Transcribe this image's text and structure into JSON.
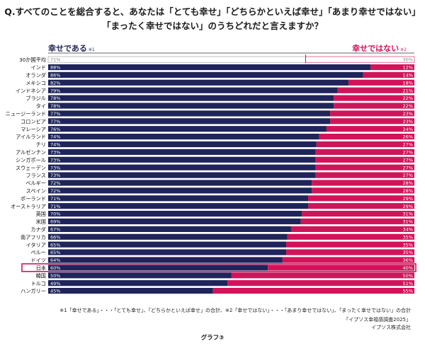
{
  "title_line1": "Q.すべてのことを総合すると、あなたは「とても幸せ」「どちらかといえば幸せ」「あまり幸せではない」",
  "title_line2": "「まったく幸せではない」のうちどれだと言えますか？",
  "legend": {
    "happy_label": "幸せである",
    "happy_note": "※1",
    "unhappy_label": "幸せではない",
    "unhappy_note": "※2",
    "happy_color": "#1f255a",
    "unhappy_color": "#d1145a",
    "average_color": "#ffffff",
    "highlight_color": "#d1145a"
  },
  "footnote": "※1「幸せである」・・・「とても幸せ」、「どちらかといえば幸せ」の合計、※2「幸せではない」・・・「あまり幸せではない」、「まったく幸せではない」の合計",
  "source_survey": "「イプソス幸福感調査2025」",
  "source_company": "イプソス株式会社",
  "graph_label": "グラフ③",
  "chart_data": {
    "type": "bar",
    "orientation": "horizontal-stacked-100",
    "title": "",
    "xlabel": "",
    "ylabel": "",
    "xlim": [
      0,
      100
    ],
    "highlight_category": "日本",
    "average_category": "30か国平均",
    "categories": [
      "30か国平均",
      "インド",
      "オランダ",
      "メキシコ",
      "インドネシア",
      "ブラジル",
      "タイ",
      "ニュージーランド",
      "コロンビア",
      "マレーシア",
      "アイルランド",
      "チリ",
      "アルゼンチン",
      "シンガポール",
      "スウェーデン",
      "フランス",
      "ベルギー",
      "スペイン",
      "ポーランド",
      "オーストラリア",
      "英国",
      "米国",
      "カナダ",
      "南アフリカ",
      "イタリア",
      "ペルー",
      "ドイツ",
      "日本",
      "韓国",
      "トルコ",
      "ハンガリー"
    ],
    "series": [
      {
        "name": "幸せである",
        "values": [
          71,
          88,
          86,
          82,
          79,
          78,
          78,
          77,
          77,
          76,
          74,
          74,
          73,
          73,
          73,
          73,
          72,
          72,
          71,
          71,
          70,
          69,
          67,
          66,
          65,
          65,
          64,
          60,
          50,
          49,
          45
        ]
      },
      {
        "name": "幸せではない",
        "values": [
          30,
          12,
          14,
          18,
          21,
          22,
          22,
          23,
          23,
          24,
          26,
          27,
          27,
          27,
          27,
          27,
          28,
          28,
          29,
          29,
          31,
          31,
          34,
          35,
          35,
          35,
          36,
          40,
          50,
          51,
          55
        ]
      }
    ]
  }
}
